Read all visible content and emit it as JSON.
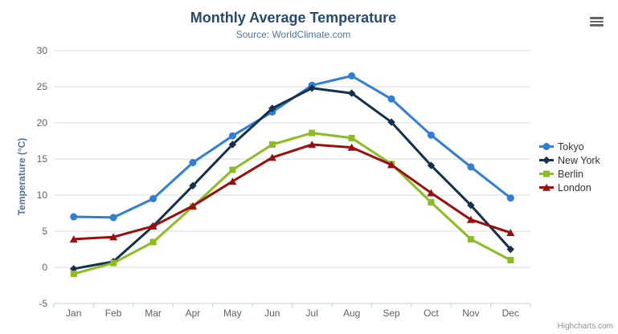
{
  "title": "Monthly Average Temperature",
  "subtitle": "Source: WorldClimate.com",
  "credits": "Highcharts.com",
  "menu_icon": "hamburger-export-menu",
  "colors": {
    "background": "#ffffff",
    "title": "#274b6d",
    "subtitle": "#4d759e",
    "axis_label": "#606060",
    "axis_title": "#4d759e",
    "legend_text": "#333333",
    "grid": "#d8d8d8",
    "axis_line": "#c0d0e0",
    "credits": "#909090",
    "menu_icon_color": "#666666"
  },
  "chart_data": {
    "type": "line",
    "title": "Monthly Average Temperature",
    "subtitle": "Source: WorldClimate.com",
    "xlabel": "",
    "ylabel": "Temperature (°C)",
    "ylim": [
      -5,
      30
    ],
    "yticks": [
      30,
      25,
      20,
      15,
      10,
      5,
      0,
      -5
    ],
    "grid": true,
    "legend_position": "right",
    "categories": [
      "Jan",
      "Feb",
      "Mar",
      "Apr",
      "May",
      "Jun",
      "Jul",
      "Aug",
      "Sep",
      "Oct",
      "Nov",
      "Dec"
    ],
    "series": [
      {
        "name": "Tokyo",
        "color": "#2f7ed8",
        "marker": "circle",
        "values": [
          7.0,
          6.9,
          9.5,
          14.5,
          18.2,
          21.5,
          25.2,
          26.5,
          23.3,
          18.3,
          13.9,
          9.6
        ]
      },
      {
        "name": "New York",
        "color": "#15304d",
        "marker": "diamond",
        "values": [
          -0.2,
          0.8,
          5.7,
          11.3,
          17.0,
          22.0,
          24.8,
          24.1,
          20.1,
          14.1,
          8.6,
          2.5
        ]
      },
      {
        "name": "Berlin",
        "color": "#8bbc21",
        "marker": "square",
        "values": [
          -0.9,
          0.6,
          3.5,
          8.4,
          13.5,
          17.0,
          18.6,
          17.9,
          14.3,
          9.0,
          3.9,
          1.0
        ]
      },
      {
        "name": "London",
        "color": "#9c0d0d",
        "marker": "triangle",
        "values": [
          3.9,
          4.2,
          5.7,
          8.5,
          11.9,
          15.2,
          17.0,
          16.6,
          14.2,
          10.3,
          6.6,
          4.8
        ]
      }
    ]
  }
}
